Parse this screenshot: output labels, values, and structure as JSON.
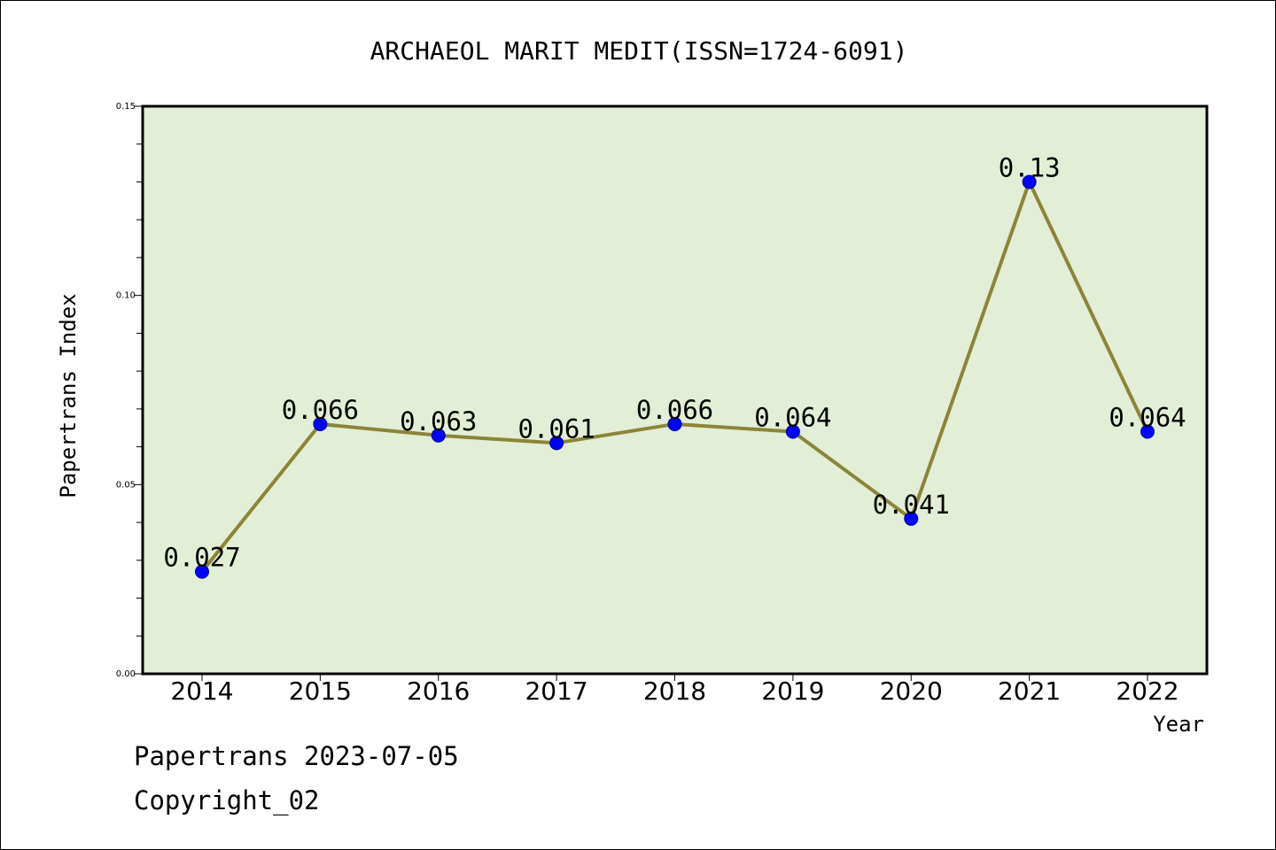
{
  "footer": {
    "line1": "Papertrans 2023-07-05",
    "line2": "Copyright_02"
  },
  "colors": {
    "plot_background": "#e2efd6",
    "line": "#8c8439",
    "marker": "#0000ff",
    "axis": "#000000"
  },
  "chart_data": {
    "type": "line",
    "title": "ARCHAEOL MARIT MEDIT(ISSN=1724-6091)",
    "xlabel": "Year",
    "ylabel": "Papertrans Index",
    "categories": [
      "2014",
      "2015",
      "2016",
      "2017",
      "2018",
      "2019",
      "2020",
      "2021",
      "2022"
    ],
    "series": [
      {
        "values": [
          0.027,
          0.066,
          0.063,
          0.061,
          0.066,
          0.064,
          0.041,
          0.13,
          0.064
        ],
        "labels": [
          "0.027",
          "0.066",
          "0.063",
          "0.061",
          "0.066",
          "0.064",
          "0.041",
          "0.13",
          "0.064"
        ]
      }
    ],
    "ylim": [
      0,
      0.15
    ],
    "yticks": [
      "0.00",
      "0.05",
      "0.10",
      "0.15"
    ],
    "ytick_values": [
      0,
      0.05,
      0.1,
      0.15
    ],
    "minor_ytick_step": 0.01,
    "grid": false,
    "legend": "none"
  }
}
